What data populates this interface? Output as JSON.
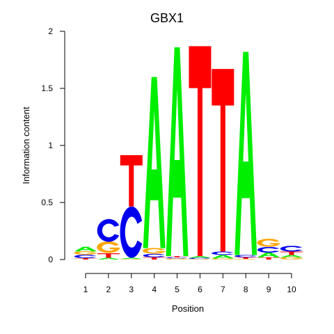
{
  "chart_data": {
    "type": "sequence-logo",
    "title": "GBX1",
    "xlabel": "Position",
    "ylabel": "Information content",
    "ylim": [
      0,
      2
    ],
    "y_ticks": [
      0,
      0.5,
      1,
      1.5,
      2
    ],
    "y_tick_labels": [
      "0",
      "0.5",
      "1",
      "1.5",
      "2"
    ],
    "positions": [
      1,
      2,
      3,
      4,
      5,
      6,
      7,
      8,
      9,
      10
    ],
    "position_labels": [
      "1",
      "2",
      "3",
      "4",
      "5",
      "6",
      "7",
      "8",
      "9",
      "10"
    ],
    "colors": {
      "A": "#00ee00",
      "C": "#0000ee",
      "G": "#ffa500",
      "T": "#ff0000"
    },
    "columns": [
      [
        {
          "base": "T",
          "value": 0.012
        },
        {
          "base": "C",
          "value": 0.03
        },
        {
          "base": "G",
          "value": 0.03
        },
        {
          "base": "A",
          "value": 0.04
        }
      ],
      [
        {
          "base": "A",
          "value": 0.015
        },
        {
          "base": "T",
          "value": 0.04
        },
        {
          "base": "G",
          "value": 0.1
        },
        {
          "base": "C",
          "value": 0.2
        }
      ],
      [
        {
          "base": "G",
          "value": 0.005
        },
        {
          "base": "A",
          "value": 0.01
        },
        {
          "base": "C",
          "value": 0.45
        },
        {
          "base": "T",
          "value": 0.45
        }
      ],
      [
        {
          "base": "T",
          "value": 0.02
        },
        {
          "base": "C",
          "value": 0.03
        },
        {
          "base": "G",
          "value": 0.05
        },
        {
          "base": "A",
          "value": 1.5
        }
      ],
      [
        {
          "base": "G",
          "value": 0.01
        },
        {
          "base": "C",
          "value": 0.01
        },
        {
          "base": "T",
          "value": 0.01
        },
        {
          "base": "A",
          "value": 1.83
        }
      ],
      [
        {
          "base": "G",
          "value": 0.005
        },
        {
          "base": "C",
          "value": 0.01
        },
        {
          "base": "A",
          "value": 0.015
        },
        {
          "base": "T",
          "value": 1.84
        }
      ],
      [
        {
          "base": "G",
          "value": 0.01
        },
        {
          "base": "A",
          "value": 0.03
        },
        {
          "base": "C",
          "value": 0.03
        },
        {
          "base": "T",
          "value": 1.6
        }
      ],
      [
        {
          "base": "G",
          "value": 0.005
        },
        {
          "base": "T",
          "value": 0.015
        },
        {
          "base": "C",
          "value": 0.02
        },
        {
          "base": "A",
          "value": 1.78
        }
      ],
      [
        {
          "base": "T",
          "value": 0.02
        },
        {
          "base": "A",
          "value": 0.04
        },
        {
          "base": "C",
          "value": 0.05
        },
        {
          "base": "G",
          "value": 0.07
        }
      ],
      [
        {
          "base": "G",
          "value": 0.02
        },
        {
          "base": "A",
          "value": 0.02
        },
        {
          "base": "T",
          "value": 0.03
        },
        {
          "base": "C",
          "value": 0.05
        }
      ]
    ]
  }
}
